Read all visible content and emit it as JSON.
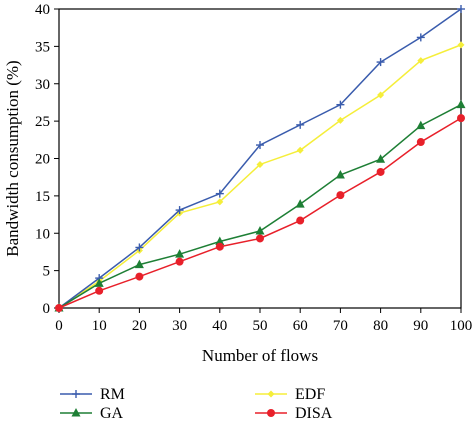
{
  "chart_data": {
    "type": "line",
    "title": "",
    "xlabel": "Number of flows",
    "ylabel": "Bandwidth consumption (%)",
    "xlim": [
      0,
      100
    ],
    "ylim": [
      0,
      40
    ],
    "x": [
      0,
      10,
      20,
      30,
      40,
      50,
      60,
      70,
      80,
      90,
      100
    ],
    "xticks": [
      "0",
      "10",
      "20",
      "30",
      "40",
      "50",
      "60",
      "70",
      "80",
      "90",
      "100"
    ],
    "yticks": [
      "0",
      "5",
      "10",
      "15",
      "20",
      "25",
      "30",
      "35",
      "40"
    ],
    "grid": false,
    "legend_position": "bottom",
    "series": [
      {
        "name": "RM",
        "color": "#3a5cad",
        "marker": "plus",
        "values": [
          0,
          4.0,
          8.1,
          13.1,
          15.3,
          21.8,
          24.5,
          27.2,
          32.9,
          36.2,
          40.0
        ]
      },
      {
        "name": "GA",
        "color": "#1e7f35",
        "marker": "triangle",
        "values": [
          0,
          3.3,
          5.8,
          7.2,
          8.9,
          10.3,
          13.9,
          17.8,
          19.9,
          24.4,
          27.2
        ]
      },
      {
        "name": "EDF",
        "color": "#f5ee3a",
        "marker": "diamond",
        "values": [
          0,
          3.6,
          7.7,
          12.7,
          14.2,
          19.2,
          21.1,
          25.1,
          28.5,
          33.1,
          35.2
        ]
      },
      {
        "name": "DISA",
        "color": "#e8202a",
        "marker": "circle",
        "values": [
          0,
          2.3,
          4.2,
          6.2,
          8.2,
          9.3,
          11.7,
          15.1,
          18.2,
          22.2,
          25.4
        ]
      }
    ]
  }
}
